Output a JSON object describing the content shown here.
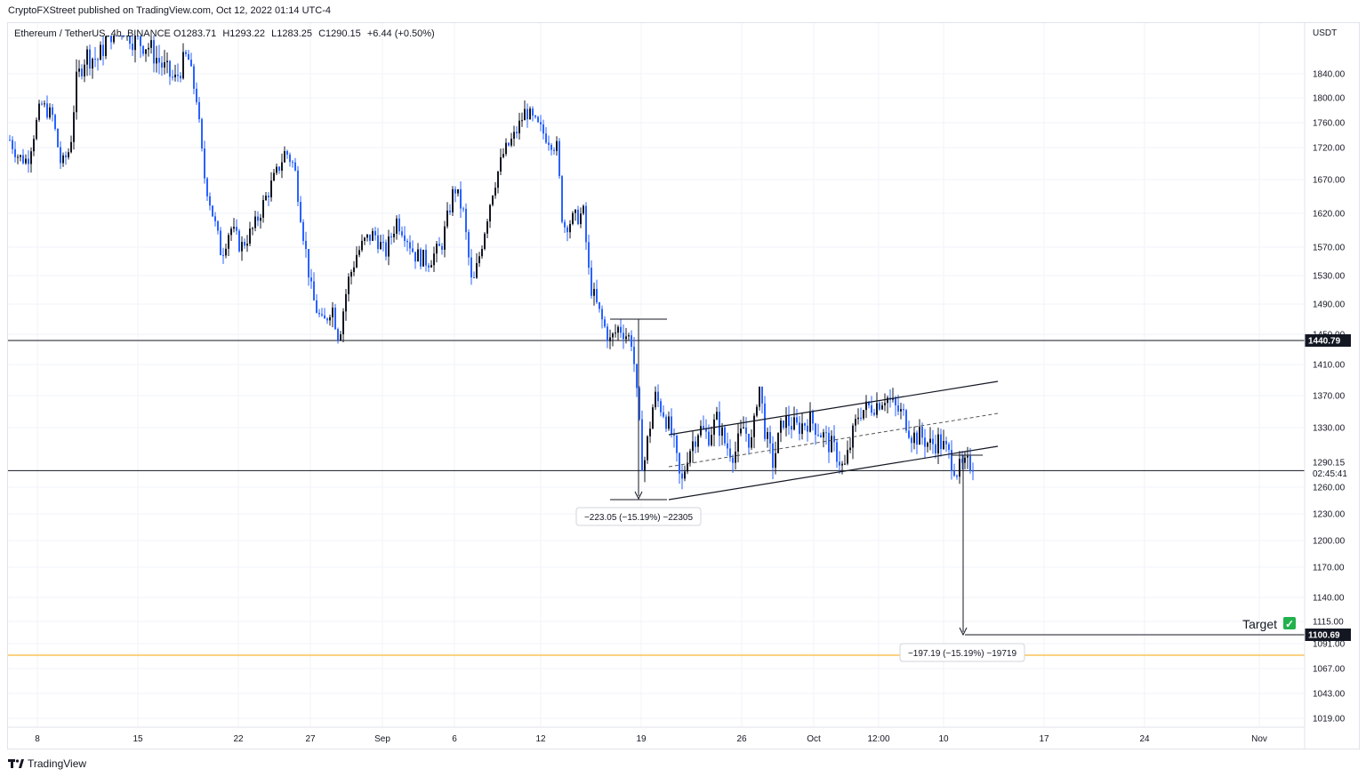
{
  "header": {
    "published_text": "CryptoFXStreet published on TradingView.com, Oct 12, 2022 01:14 UTC-4"
  },
  "legend": {
    "symbol": "Ethereum / TetherUS, 4h, BINANCE",
    "open": "O1283.71",
    "high": "H1293.22",
    "low": "L1283.25",
    "close": "C1290.15",
    "change": "+6.44 (+0.50%)"
  },
  "footer": {
    "brand_label": "TradingView"
  },
  "colors": {
    "candle_up": "#131722",
    "candle_down": "#2962ff",
    "gridline": "#f0f3fa",
    "support_orange": "#f7a600"
  },
  "chart_data": {
    "type": "candlestick",
    "currency_label": "USDT",
    "y_ticks": [
      "1840.00",
      "1800.00",
      "1760.00",
      "1720.00",
      "1670.00",
      "1620.00",
      "1570.00",
      "1530.00",
      "1490.00",
      "1450.00",
      "1410.00",
      "1370.00",
      "1330.00",
      "1290.15",
      "1260.00",
      "1230.00",
      "1200.00",
      "1170.00",
      "1140.00",
      "1115.00",
      "1091.00",
      "1067.00",
      "1043.00",
      "1019.00"
    ],
    "y_tick_values": [
      1840,
      1800,
      1760,
      1720,
      1670,
      1620,
      1570,
      1530,
      1490,
      1450,
      1410,
      1370,
      1330,
      1290.15,
      1260,
      1230,
      1200,
      1170,
      1140,
      1115,
      1091,
      1067,
      1043,
      1019
    ],
    "x_ticks": [
      "8",
      "15",
      "22",
      "27",
      "Sep",
      "6",
      "12",
      "19",
      "26",
      "Oct",
      "12:00",
      "10",
      "17",
      "24",
      "Nov"
    ],
    "countdown": "02:45:41",
    "current_price": "1290.15",
    "horizontal_levels": [
      {
        "name": "resistance",
        "label": "1440.79",
        "value": 1440.79
      },
      {
        "name": "support",
        "value": 1280
      },
      {
        "name": "target",
        "label": "1100.69",
        "value": 1100.69
      },
      {
        "name": "support-orange",
        "value": 1082
      }
    ],
    "measure_annotations": [
      {
        "name": "drop-measure",
        "label": "−223.05 (−15.19%) −22305",
        "from": 1468,
        "to": 1245
      },
      {
        "name": "target-measure",
        "label": "−197.19 (−15.19%) −19719",
        "from": 1298,
        "to": 1100.69
      }
    ],
    "target_label": "Target",
    "target_check": "✓",
    "channel": {
      "lower_start": [
        1245
      ],
      "lower_end": [
        1310
      ],
      "upper_start": [
        1322
      ],
      "upper_end": [
        1390
      ]
    },
    "ylim": [
      1005,
      1880
    ]
  }
}
